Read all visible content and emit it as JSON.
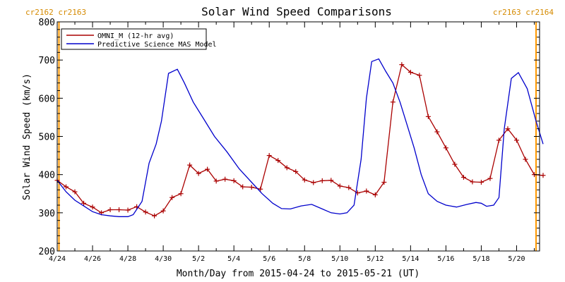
{
  "chart_data": {
    "type": "line",
    "title": "Solar Wind Speed Comparisons",
    "xlabel": "Month/Day from 2015-04-24 to 2015-05-21 (UT)",
    "ylabel": "Solar Wind Speed (km/s)",
    "ylim": [
      200,
      800
    ],
    "y_ticks": [
      200,
      300,
      400,
      500,
      600,
      700,
      800
    ],
    "xlim_days": [
      0,
      27.3
    ],
    "x_ticks": [
      {
        "day": 0,
        "label": "4/24"
      },
      {
        "day": 2,
        "label": "4/26"
      },
      {
        "day": 4,
        "label": "4/28"
      },
      {
        "day": 6,
        "label": "4/30"
      },
      {
        "day": 8,
        "label": "5/2"
      },
      {
        "day": 10,
        "label": "5/4"
      },
      {
        "day": 12,
        "label": "5/6"
      },
      {
        "day": 14,
        "label": "5/8"
      },
      {
        "day": 16,
        "label": "5/10"
      },
      {
        "day": 18,
        "label": "5/12"
      },
      {
        "day": 20,
        "label": "5/14"
      },
      {
        "day": 22,
        "label": "5/16"
      },
      {
        "day": 24,
        "label": "5/18"
      },
      {
        "day": 26,
        "label": "5/20"
      }
    ],
    "rotation_labels": {
      "left": "cr2162 cr2163",
      "right": "cr2163 cr2164"
    },
    "rotation_lines_days": [
      0.1,
      27.1
    ],
    "legend_position": "top-left",
    "series": [
      {
        "name": "OMNI_M (12-hr avg)",
        "color": "#aa0000",
        "markers": true,
        "x": [
          0.0,
          0.5,
          1.0,
          1.5,
          2.0,
          2.5,
          3.0,
          3.5,
          4.0,
          4.5,
          5.0,
          5.5,
          6.0,
          6.5,
          7.0,
          7.5,
          8.0,
          8.5,
          9.0,
          9.5,
          10.0,
          10.5,
          11.0,
          11.5,
          12.0,
          12.5,
          13.0,
          13.5,
          14.0,
          14.5,
          15.0,
          15.5,
          16.0,
          16.5,
          17.0,
          17.5,
          18.0,
          18.5,
          19.0,
          19.5,
          20.0,
          20.5,
          21.0,
          21.5,
          22.0,
          22.5,
          23.0,
          23.5,
          24.0,
          24.5,
          25.0,
          25.5,
          26.0,
          26.5,
          27.0,
          27.5
        ],
        "y": [
          385,
          368,
          355,
          325,
          315,
          300,
          308,
          308,
          307,
          316,
          302,
          292,
          305,
          340,
          350,
          425,
          403,
          414,
          383,
          388,
          384,
          368,
          367,
          362,
          450,
          437,
          418,
          408,
          386,
          379,
          384,
          385,
          370,
          366,
          352,
          357,
          347,
          380,
          590,
          688,
          668,
          660,
          552,
          512,
          470,
          427,
          393,
          381,
          380,
          390,
          490,
          520,
          490,
          440,
          400,
          398
        ]
      },
      {
        "name": "Predictive Science MAS Model",
        "color": "#0000cc",
        "markers": false,
        "x": [
          0.0,
          0.5,
          1.0,
          1.5,
          2.0,
          2.5,
          3.0,
          3.5,
          4.0,
          4.3,
          4.8,
          5.2,
          5.6,
          5.9,
          6.3,
          6.8,
          7.2,
          7.7,
          8.3,
          8.9,
          9.6,
          10.3,
          11.0,
          11.6,
          12.2,
          12.7,
          13.2,
          13.8,
          14.4,
          15.0,
          15.5,
          16.0,
          16.4,
          16.8,
          17.2,
          17.5,
          17.8,
          18.2,
          18.6,
          19.0,
          19.4,
          19.8,
          20.2,
          20.6,
          21.0,
          21.5,
          22.0,
          22.6,
          23.2,
          23.7,
          24.0,
          24.3,
          24.7,
          25.0,
          25.3,
          25.7,
          26.1,
          26.6,
          27.1,
          27.5
        ],
        "y": [
          385,
          355,
          333,
          318,
          303,
          295,
          292,
          290,
          290,
          295,
          330,
          430,
          480,
          540,
          665,
          676,
          640,
          590,
          545,
          500,
          460,
          415,
          380,
          350,
          325,
          311,
          310,
          318,
          322,
          310,
          300,
          297,
          300,
          320,
          440,
          600,
          696,
          703,
          670,
          640,
          590,
          530,
          470,
          400,
          350,
          330,
          320,
          315,
          322,
          327,
          325,
          317,
          320,
          340,
          520,
          652,
          667,
          625,
          540,
          480
        ]
      }
    ]
  }
}
